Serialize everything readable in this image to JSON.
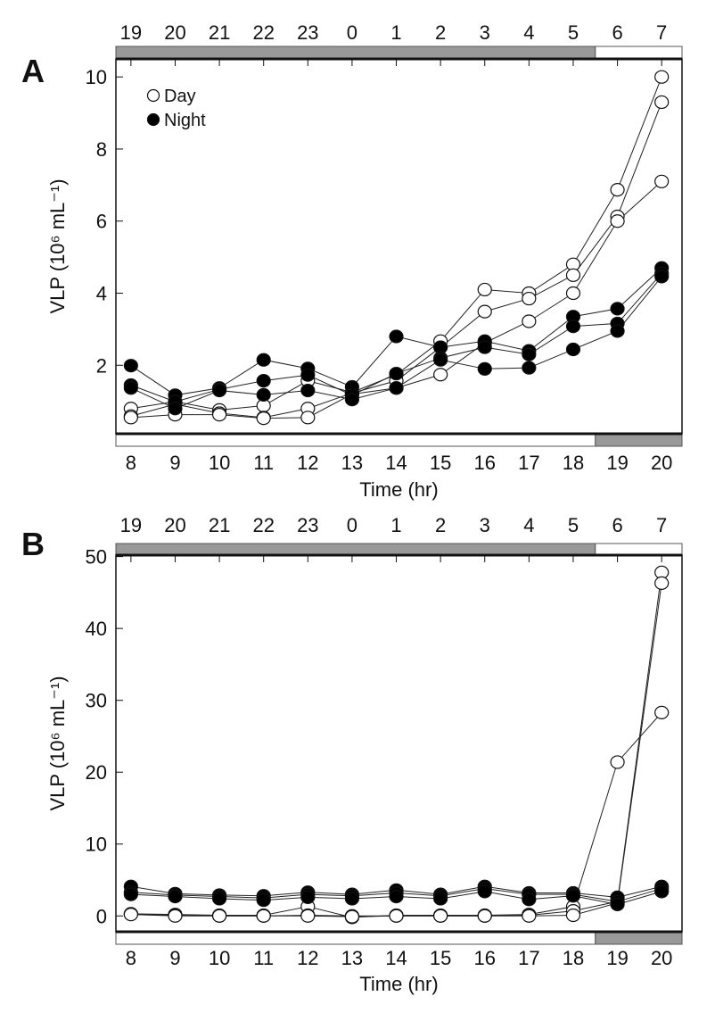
{
  "chart_data": [
    {
      "panel_label": "A",
      "type": "line",
      "xlabel": "Time (hr)",
      "ylabel": "VLP (10⁶ mL⁻¹)",
      "x": [
        8,
        9,
        10,
        11,
        12,
        13,
        14,
        15,
        16,
        17,
        18,
        19,
        20
      ],
      "top_axis_labels": [
        "19",
        "20",
        "21",
        "22",
        "23",
        "0",
        "1",
        "2",
        "3",
        "4",
        "5",
        "6",
        "7"
      ],
      "ylim": [
        0.1,
        10.5
      ],
      "xlim": [
        7.66,
        20.46
      ],
      "yticks": [
        2,
        4,
        6,
        8,
        10
      ],
      "light_dark_bars": {
        "top": [
          {
            "from": 7.66,
            "to": 18.5,
            "shade": "dark"
          },
          {
            "from": 18.5,
            "to": 20.46,
            "shade": "light"
          }
        ],
        "bottom": [
          {
            "from": 7.66,
            "to": 18.5,
            "shade": "light"
          },
          {
            "from": 18.5,
            "to": 20.46,
            "shade": "dark"
          }
        ]
      },
      "legend": {
        "placement": "top-left",
        "entries": [
          "Day",
          "Night"
        ]
      },
      "series": [
        {
          "name": "Day",
          "marker": "open-circle",
          "values": [
            0.8,
            0.99,
            0.76,
            0.88,
            1.57,
            1.25,
            1.74,
            2.67,
            4.1,
            4.0,
            4.8,
            6.87,
            10.0
          ]
        },
        {
          "name": "Day",
          "marker": "open-circle",
          "values": [
            0.59,
            0.92,
            0.67,
            0.55,
            0.8,
            1.23,
            1.57,
            2.5,
            3.49,
            3.85,
            4.5,
            6.13,
            9.3
          ]
        },
        {
          "name": "Day",
          "marker": "open-circle",
          "values": [
            0.55,
            0.63,
            0.63,
            0.53,
            0.55,
            1.2,
            1.37,
            1.74,
            2.62,
            3.22,
            4.0,
            6.0,
            7.1
          ]
        },
        {
          "name": "Night",
          "marker": "filled-circle",
          "values": [
            1.99,
            1.17,
            1.37,
            2.15,
            1.91,
            1.4,
            2.8,
            2.5,
            2.67,
            2.4,
            3.35,
            3.57,
            4.7
          ]
        },
        {
          "name": "Night",
          "marker": "filled-circle",
          "values": [
            1.45,
            0.99,
            1.33,
            1.57,
            1.73,
            1.17,
            1.77,
            2.2,
            2.5,
            2.3,
            3.08,
            3.16,
            4.55
          ]
        },
        {
          "name": "Night",
          "marker": "filled-circle",
          "values": [
            1.37,
            0.8,
            1.3,
            1.18,
            1.3,
            1.05,
            1.37,
            2.15,
            1.9,
            1.93,
            2.44,
            2.95,
            4.46
          ]
        }
      ]
    },
    {
      "panel_label": "B",
      "type": "line",
      "xlabel": "Time (hr)",
      "ylabel": "VLP (10⁶ mL⁻¹)",
      "x": [
        8,
        9,
        10,
        11,
        12,
        13,
        14,
        15,
        16,
        17,
        18,
        19,
        20
      ],
      "top_axis_labels": [
        "19",
        "20",
        "21",
        "22",
        "23",
        "0",
        "1",
        "2",
        "3",
        "4",
        "5",
        "6",
        "7"
      ],
      "ylim": [
        -2.2,
        50.2
      ],
      "xlim": [
        7.66,
        20.46
      ],
      "yticks": [
        0,
        10,
        20,
        30,
        40,
        50
      ],
      "light_dark_bars": {
        "top": [
          {
            "from": 7.66,
            "to": 18.5,
            "shade": "dark"
          },
          {
            "from": 18.5,
            "to": 20.46,
            "shade": "light"
          }
        ],
        "bottom": [
          {
            "from": 7.66,
            "to": 18.5,
            "shade": "light"
          },
          {
            "from": 18.5,
            "to": 20.46,
            "shade": "dark"
          }
        ]
      },
      "series": [
        {
          "name": "Day",
          "marker": "open-circle",
          "values": [
            0.3,
            0.2,
            0.1,
            0.1,
            1.3,
            -0.2,
            0.1,
            0.1,
            0.1,
            0.2,
            1.3,
            21.4,
            28.3
          ]
        },
        {
          "name": "Day",
          "marker": "open-circle",
          "values": [
            0.25,
            0.1,
            0.0,
            0.0,
            0.1,
            0.0,
            0.0,
            0.0,
            0.0,
            0.1,
            0.7,
            2.0,
            47.8
          ]
        },
        {
          "name": "Day",
          "marker": "open-circle",
          "values": [
            0.2,
            0.0,
            0.0,
            0.0,
            0.0,
            -0.1,
            0.0,
            0.0,
            0.0,
            0.0,
            0.1,
            1.8,
            46.3
          ]
        },
        {
          "name": "Night",
          "marker": "filled-circle",
          "values": [
            4.1,
            3.1,
            2.9,
            2.8,
            3.3,
            3.0,
            3.6,
            3.0,
            4.1,
            3.2,
            3.2,
            2.6,
            4.1
          ]
        },
        {
          "name": "Night",
          "marker": "filled-circle",
          "values": [
            3.3,
            2.9,
            2.7,
            2.5,
            3.0,
            2.8,
            3.2,
            2.8,
            3.8,
            3.0,
            3.0,
            2.0,
            3.8
          ]
        },
        {
          "name": "Night",
          "marker": "filled-circle",
          "values": [
            3.0,
            2.7,
            2.4,
            2.2,
            2.6,
            2.4,
            2.7,
            2.4,
            3.4,
            2.3,
            2.8,
            1.6,
            3.4
          ]
        }
      ]
    }
  ]
}
